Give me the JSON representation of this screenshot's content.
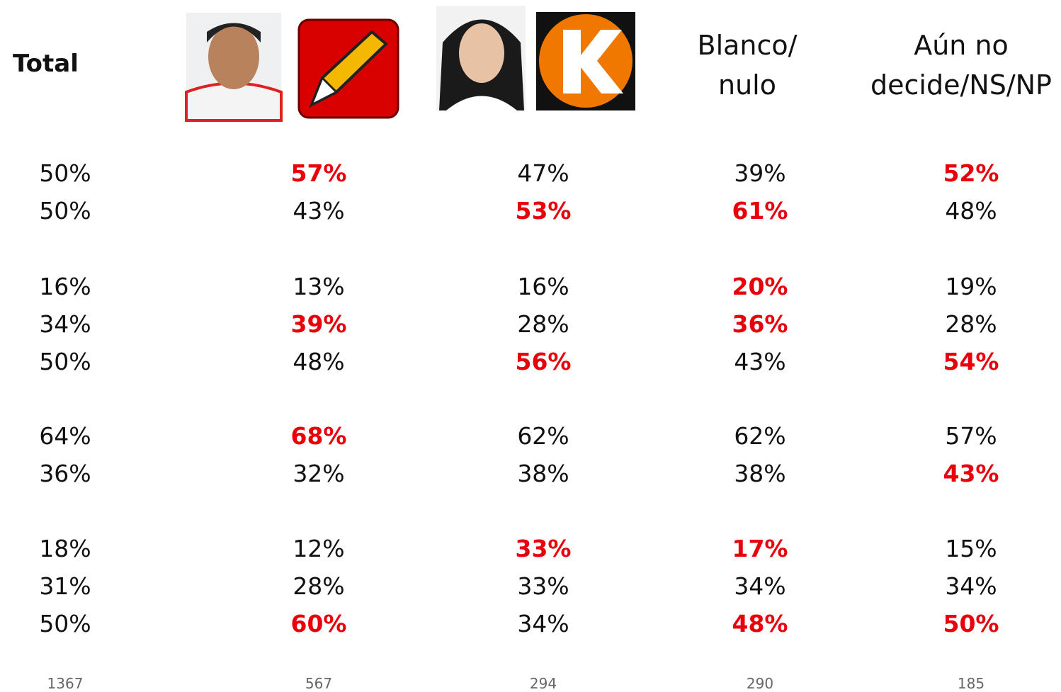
{
  "header": {
    "total": "Total",
    "blank": "Blanco/\nnulo",
    "undecided": "Aún no\ndecide/NS/NP"
  },
  "table": {
    "groups": [
      {
        "rows": [
          [
            {
              "text": "50%"
            },
            {
              "text": "57%",
              "bold": true
            },
            {
              "text": "47%"
            },
            {
              "text": "39%"
            },
            {
              "text": "52%",
              "bold": true
            }
          ],
          [
            {
              "text": "50%"
            },
            {
              "text": "43%"
            },
            {
              "text": "53%",
              "bold": true
            },
            {
              "text": "61%",
              "bold": true
            },
            {
              "text": "48%"
            }
          ]
        ]
      },
      {
        "rows": [
          [
            {
              "text": "16%"
            },
            {
              "text": "13%"
            },
            {
              "text": "16%"
            },
            {
              "text": "20%",
              "bold": true
            },
            {
              "text": "19%"
            }
          ],
          [
            {
              "text": "34%"
            },
            {
              "text": "39%",
              "bold": true
            },
            {
              "text": "28%"
            },
            {
              "text": "36%",
              "bold": true
            },
            {
              "text": "28%"
            }
          ],
          [
            {
              "text": "50%"
            },
            {
              "text": "48%"
            },
            {
              "text": "56%",
              "bold": true
            },
            {
              "text": "43%"
            },
            {
              "text": "54%",
              "bold": true
            }
          ]
        ]
      },
      {
        "rows": [
          [
            {
              "text": "64%"
            },
            {
              "text": "68%",
              "bold": true
            },
            {
              "text": "62%"
            },
            {
              "text": "62%"
            },
            {
              "text": "57%"
            }
          ],
          [
            {
              "text": "36%"
            },
            {
              "text": "32%"
            },
            {
              "text": "38%"
            },
            {
              "text": "38%"
            },
            {
              "text": "43%",
              "bold": true
            }
          ]
        ]
      },
      {
        "rows": [
          [
            {
              "text": "18%"
            },
            {
              "text": "12%"
            },
            {
              "text": "33%",
              "bold": true
            },
            {
              "text": "17%",
              "bold": true
            },
            {
              "text": "15%"
            }
          ],
          [
            {
              "text": "31%"
            },
            {
              "text": "28%"
            },
            {
              "text": "33%"
            },
            {
              "text": "34%"
            },
            {
              "text": "34%"
            }
          ],
          [
            {
              "text": "50%"
            },
            {
              "text": "60%",
              "bold": true
            },
            {
              "text": "34%"
            },
            {
              "text": "48%",
              "bold": true
            },
            {
              "text": "50%",
              "bold": true
            }
          ]
        ]
      }
    ],
    "base": [
      "1367",
      "567",
      "294",
      "290",
      "185"
    ]
  }
}
